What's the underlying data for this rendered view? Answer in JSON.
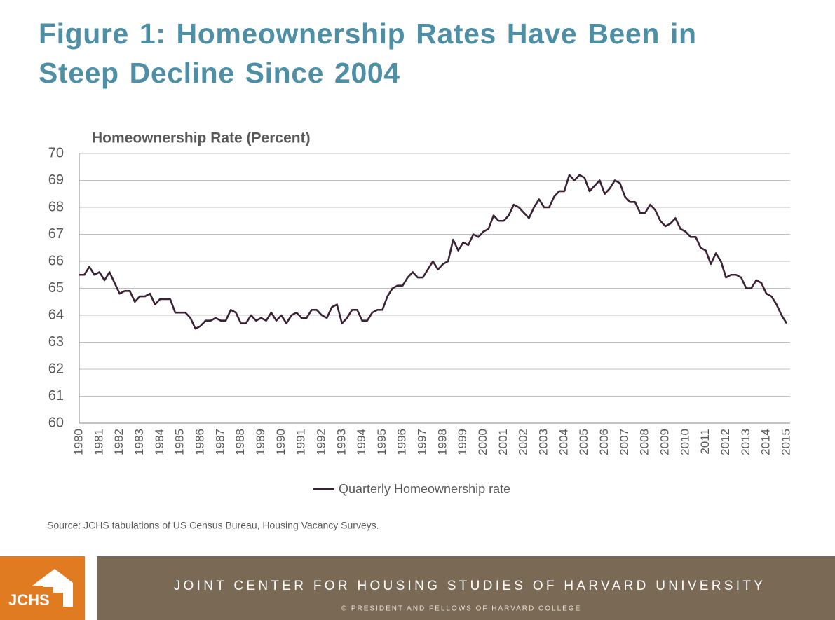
{
  "chart_data": {
    "type": "line",
    "title": "Figure 1: Homeownership Rates Have Been in Steep Decline Since 2004",
    "ylabel": "Homeownership Rate (Percent)",
    "source": "Source: JCHS tabulations of US Census Bureau, Housing Vacancy Surveys.",
    "categories": [
      "1980",
      null,
      null,
      null,
      "1981",
      null,
      null,
      null,
      "1982",
      null,
      null,
      null,
      "1983",
      null,
      null,
      null,
      "1984",
      null,
      null,
      null,
      "1985",
      null,
      null,
      null,
      "1986",
      null,
      null,
      null,
      "1987",
      null,
      null,
      null,
      "1988",
      null,
      null,
      null,
      "1989",
      null,
      null,
      null,
      "1990",
      null,
      null,
      null,
      "1991",
      null,
      null,
      null,
      "1992",
      null,
      null,
      null,
      "1993",
      null,
      null,
      null,
      "1994",
      null,
      null,
      null,
      "1995",
      null,
      null,
      null,
      "1996",
      null,
      null,
      null,
      "1997",
      null,
      null,
      null,
      "1998",
      null,
      null,
      null,
      "1999",
      null,
      null,
      null,
      "2000",
      null,
      null,
      null,
      "2001",
      null,
      null,
      null,
      "2002",
      null,
      null,
      null,
      "2003",
      null,
      null,
      null,
      "2004",
      null,
      null,
      null,
      "2005",
      null,
      null,
      null,
      "2006",
      null,
      null,
      null,
      "2007",
      null,
      null,
      null,
      "2008",
      null,
      null,
      null,
      "2009",
      null,
      null,
      null,
      "2010",
      null,
      null,
      null,
      "2011",
      null,
      null,
      null,
      "2012",
      null,
      null,
      null,
      "2013",
      null,
      null,
      null,
      "2014",
      null,
      null,
      null,
      "2015"
    ],
    "series": [
      {
        "name": "Quarterly Homeownership rate",
        "color": "#3b2236",
        "values": [
          65.5,
          65.5,
          65.8,
          65.5,
          65.6,
          65.3,
          65.6,
          65.2,
          64.8,
          64.9,
          64.9,
          64.5,
          64.7,
          64.7,
          64.8,
          64.4,
          64.6,
          64.6,
          64.6,
          64.1,
          64.1,
          64.1,
          63.9,
          63.5,
          63.6,
          63.8,
          63.8,
          63.9,
          63.8,
          63.8,
          64.2,
          64.1,
          63.7,
          63.7,
          64.0,
          63.8,
          63.9,
          63.8,
          64.1,
          63.8,
          64.0,
          63.7,
          64.0,
          64.1,
          63.9,
          63.9,
          64.2,
          64.2,
          64.0,
          63.9,
          64.3,
          64.4,
          63.7,
          63.9,
          64.2,
          64.2,
          63.8,
          63.8,
          64.1,
          64.2,
          64.2,
          64.7,
          65.0,
          65.1,
          65.1,
          65.4,
          65.6,
          65.4,
          65.4,
          65.7,
          66.0,
          65.7,
          65.9,
          66.0,
          66.8,
          66.4,
          66.7,
          66.6,
          67.0,
          66.9,
          67.1,
          67.2,
          67.7,
          67.5,
          67.5,
          67.7,
          68.1,
          68.0,
          67.8,
          67.6,
          68.0,
          68.3,
          68.0,
          68.0,
          68.4,
          68.6,
          68.6,
          69.2,
          69.0,
          69.2,
          69.1,
          68.6,
          68.8,
          69.0,
          68.5,
          68.7,
          69.0,
          68.9,
          68.4,
          68.2,
          68.2,
          67.8,
          67.8,
          68.1,
          67.9,
          67.5,
          67.3,
          67.4,
          67.6,
          67.2,
          67.1,
          66.9,
          66.9,
          66.5,
          66.4,
          65.9,
          66.3,
          66.0,
          65.4,
          65.5,
          65.5,
          65.4,
          65.0,
          65.0,
          65.3,
          65.2,
          64.8,
          64.7,
          64.4,
          64.0,
          63.7
        ]
      }
    ],
    "ylim": [
      60,
      70
    ],
    "yticks": [
      60,
      61,
      62,
      63,
      64,
      65,
      66,
      67,
      68,
      69,
      70
    ],
    "grid": true,
    "legend": "bottom"
  },
  "footer": {
    "logo": "JCHS",
    "organization": "JOINT CENTER FOR HOUSING STUDIES OF HARVARD UNIVERSITY",
    "copyright": "© PRESIDENT AND FELLOWS OF HARVARD COLLEGE"
  }
}
